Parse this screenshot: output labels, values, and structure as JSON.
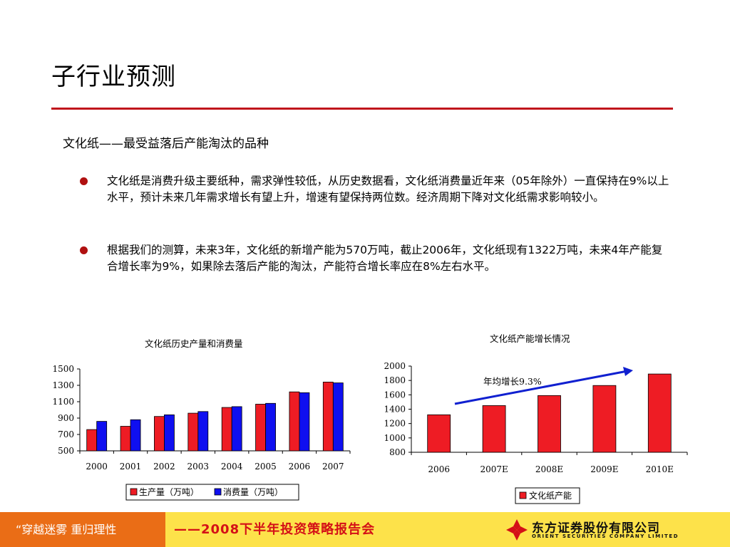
{
  "header": {
    "title": "子行业预测"
  },
  "section": {
    "subtitle": "文化纸——最受益落后产能淘汰的品种",
    "bullets": [
      {
        "text": "文化纸是消费升级主要纸种，需求弹性较低，从历史数据看，文化纸消费量近年来（05年除外）一直保持在9%以上水平，预计未来几年需求增长有望上升，增速有望保持两位数。经济周期下降对文化纸需求影响较小。"
      },
      {
        "text": "根据我们的测算，未来3年，文化纸的新增产能为570万吨，截止2006年，文化纸现有1322万吨，未来4年产能复合增长率为9%，如果除去落后产能的淘汰，产能符合增长率应在8%左右水平。"
      }
    ]
  },
  "chart_data": [
    {
      "type": "bar",
      "title": "文化纸历史产量和消费量",
      "categories": [
        "2000",
        "2001",
        "2002",
        "2003",
        "2004",
        "2005",
        "2006",
        "2007"
      ],
      "series": [
        {
          "name": "生产量（万吨）",
          "color": "#ee1c24",
          "values": [
            760,
            800,
            920,
            960,
            1030,
            1070,
            1220,
            1340
          ]
        },
        {
          "name": "消费量（万吨）",
          "color": "#0f0ff0",
          "values": [
            860,
            880,
            940,
            980,
            1040,
            1080,
            1210,
            1330
          ]
        }
      ],
      "yticks": [
        500,
        700,
        900,
        1100,
        1300,
        1500
      ],
      "ylim": [
        500,
        1500
      ],
      "legend": "bottom"
    },
    {
      "type": "bar",
      "title": "文化纸产能增长情况",
      "categories": [
        "2006",
        "2007E",
        "2008E",
        "2009E",
        "2010E"
      ],
      "series": [
        {
          "name": "文化纸产能",
          "color": "#ee1c24",
          "values": [
            1322,
            1450,
            1590,
            1730,
            1890
          ]
        }
      ],
      "yticks": [
        800,
        1000,
        1200,
        1400,
        1600,
        1800,
        2000
      ],
      "ylim": [
        800,
        2000
      ],
      "annotation": "年均增长9.3%",
      "legend": "bottom"
    }
  ],
  "footer": {
    "slogan": "“穿越迷雾   重归理性",
    "report": "——2008下半年投资策略报告会",
    "company_cn": "东方证券股份有限公司",
    "company_en": "ORIENT SECURITIES COMPANY LIMITED"
  }
}
